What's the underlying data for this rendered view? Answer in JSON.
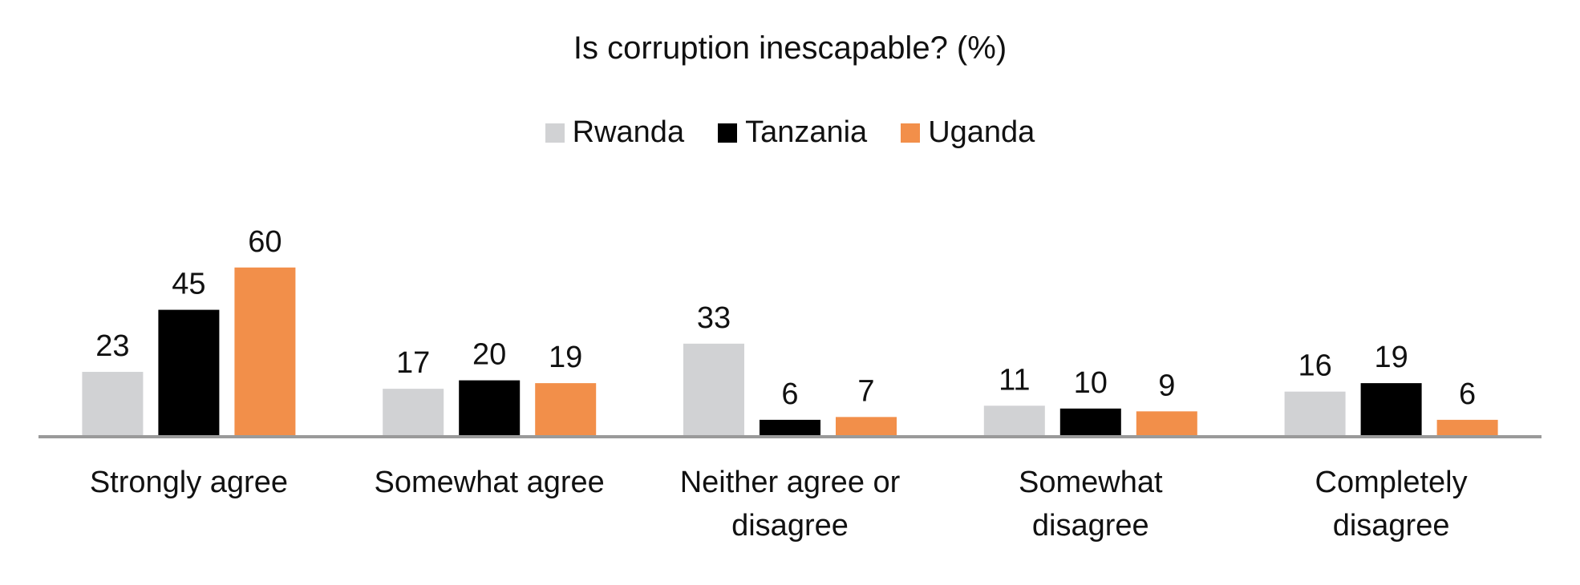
{
  "chart_data": {
    "type": "bar",
    "title": "Is corruption inescapable? (%)",
    "categories": [
      "Strongly agree",
      "Somewhat agree",
      "Neither agree or disagree",
      "Somewhat disagree",
      "Completely disagree"
    ],
    "series": [
      {
        "name": "Rwanda",
        "color": "#d1d2d4",
        "values": [
          23,
          17,
          33,
          11,
          16
        ]
      },
      {
        "name": "Tanzania",
        "color": "#000000",
        "values": [
          45,
          20,
          6,
          10,
          19
        ]
      },
      {
        "name": "Uganda",
        "color": "#f28f4a",
        "values": [
          60,
          19,
          7,
          9,
          6
        ]
      }
    ]
  }
}
